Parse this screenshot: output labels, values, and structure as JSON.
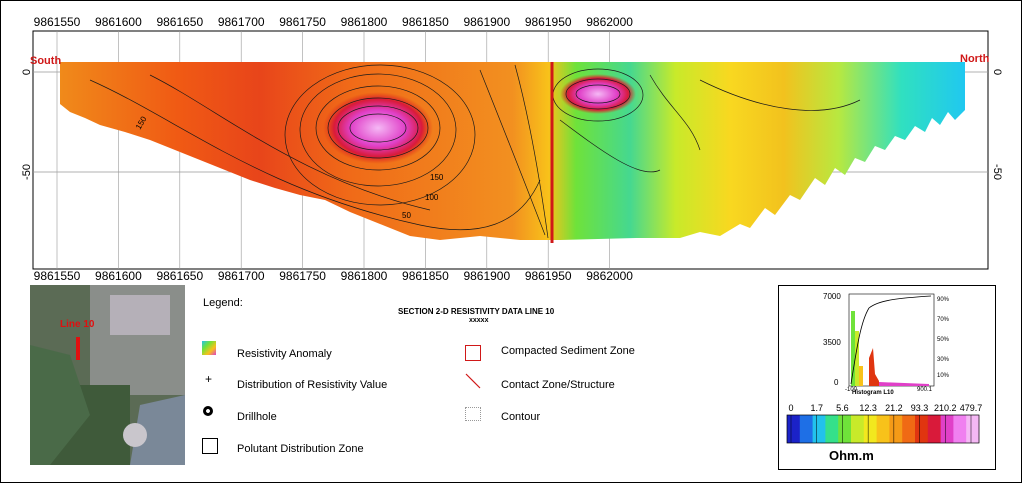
{
  "section": {
    "x_axis_top": [
      "9861550",
      "9861600",
      "9861650",
      "9861700",
      "9861750",
      "9861800",
      "9861850",
      "9861900",
      "9861950",
      "9862000"
    ],
    "x_axis_bottom": [
      "9861550",
      "9861600",
      "9861650",
      "9861700",
      "9861750",
      "9861800",
      "9861850",
      "9861900",
      "9861950",
      "9862000"
    ],
    "y_axis": [
      "0",
      "-50"
    ],
    "south_label": "South",
    "north_label": "North",
    "contour_labels": [
      "150",
      "100",
      "50",
      "150"
    ]
  },
  "legend": {
    "heading": "Legend:",
    "title": "SECTION 2-D RESISTIVITY DATA LINE 10",
    "subtitle": "xxxxx",
    "items": [
      {
        "label": "Resistivity Anomaly"
      },
      {
        "label": "Distribution of Resistivity Value"
      },
      {
        "label": "Drillhole"
      },
      {
        "label": "Polutant Distribution Zone"
      },
      {
        "label": "Compacted Sediment Zone"
      },
      {
        "label": "Contact Zone/Structure"
      },
      {
        "label": "Contour"
      }
    ]
  },
  "map": {
    "line_label": "Line 10"
  },
  "histogram": {
    "caption": "Histogram L10",
    "y_left": [
      "7000",
      "3500",
      "0"
    ],
    "y_right": [
      "90%",
      "70%",
      "50%",
      "30%",
      "10%"
    ],
    "x_ticks": [
      "-100",
      "900.1"
    ]
  },
  "colorbar": {
    "ticks": [
      "0",
      "1.7",
      "5.6",
      "12.3",
      "21.2",
      "93.3",
      "210.2",
      "479.7"
    ],
    "unit": "Ohm.m",
    "colors": [
      "#1b22c8",
      "#1e6fe6",
      "#22c2ec",
      "#35e08a",
      "#6fe23a",
      "#c8ea2a",
      "#f2e81e",
      "#f8c21a",
      "#f59a17",
      "#f06a14",
      "#e03510",
      "#d91a3a",
      "#e040c8",
      "#f080f0",
      "#f5b8f5"
    ]
  }
}
